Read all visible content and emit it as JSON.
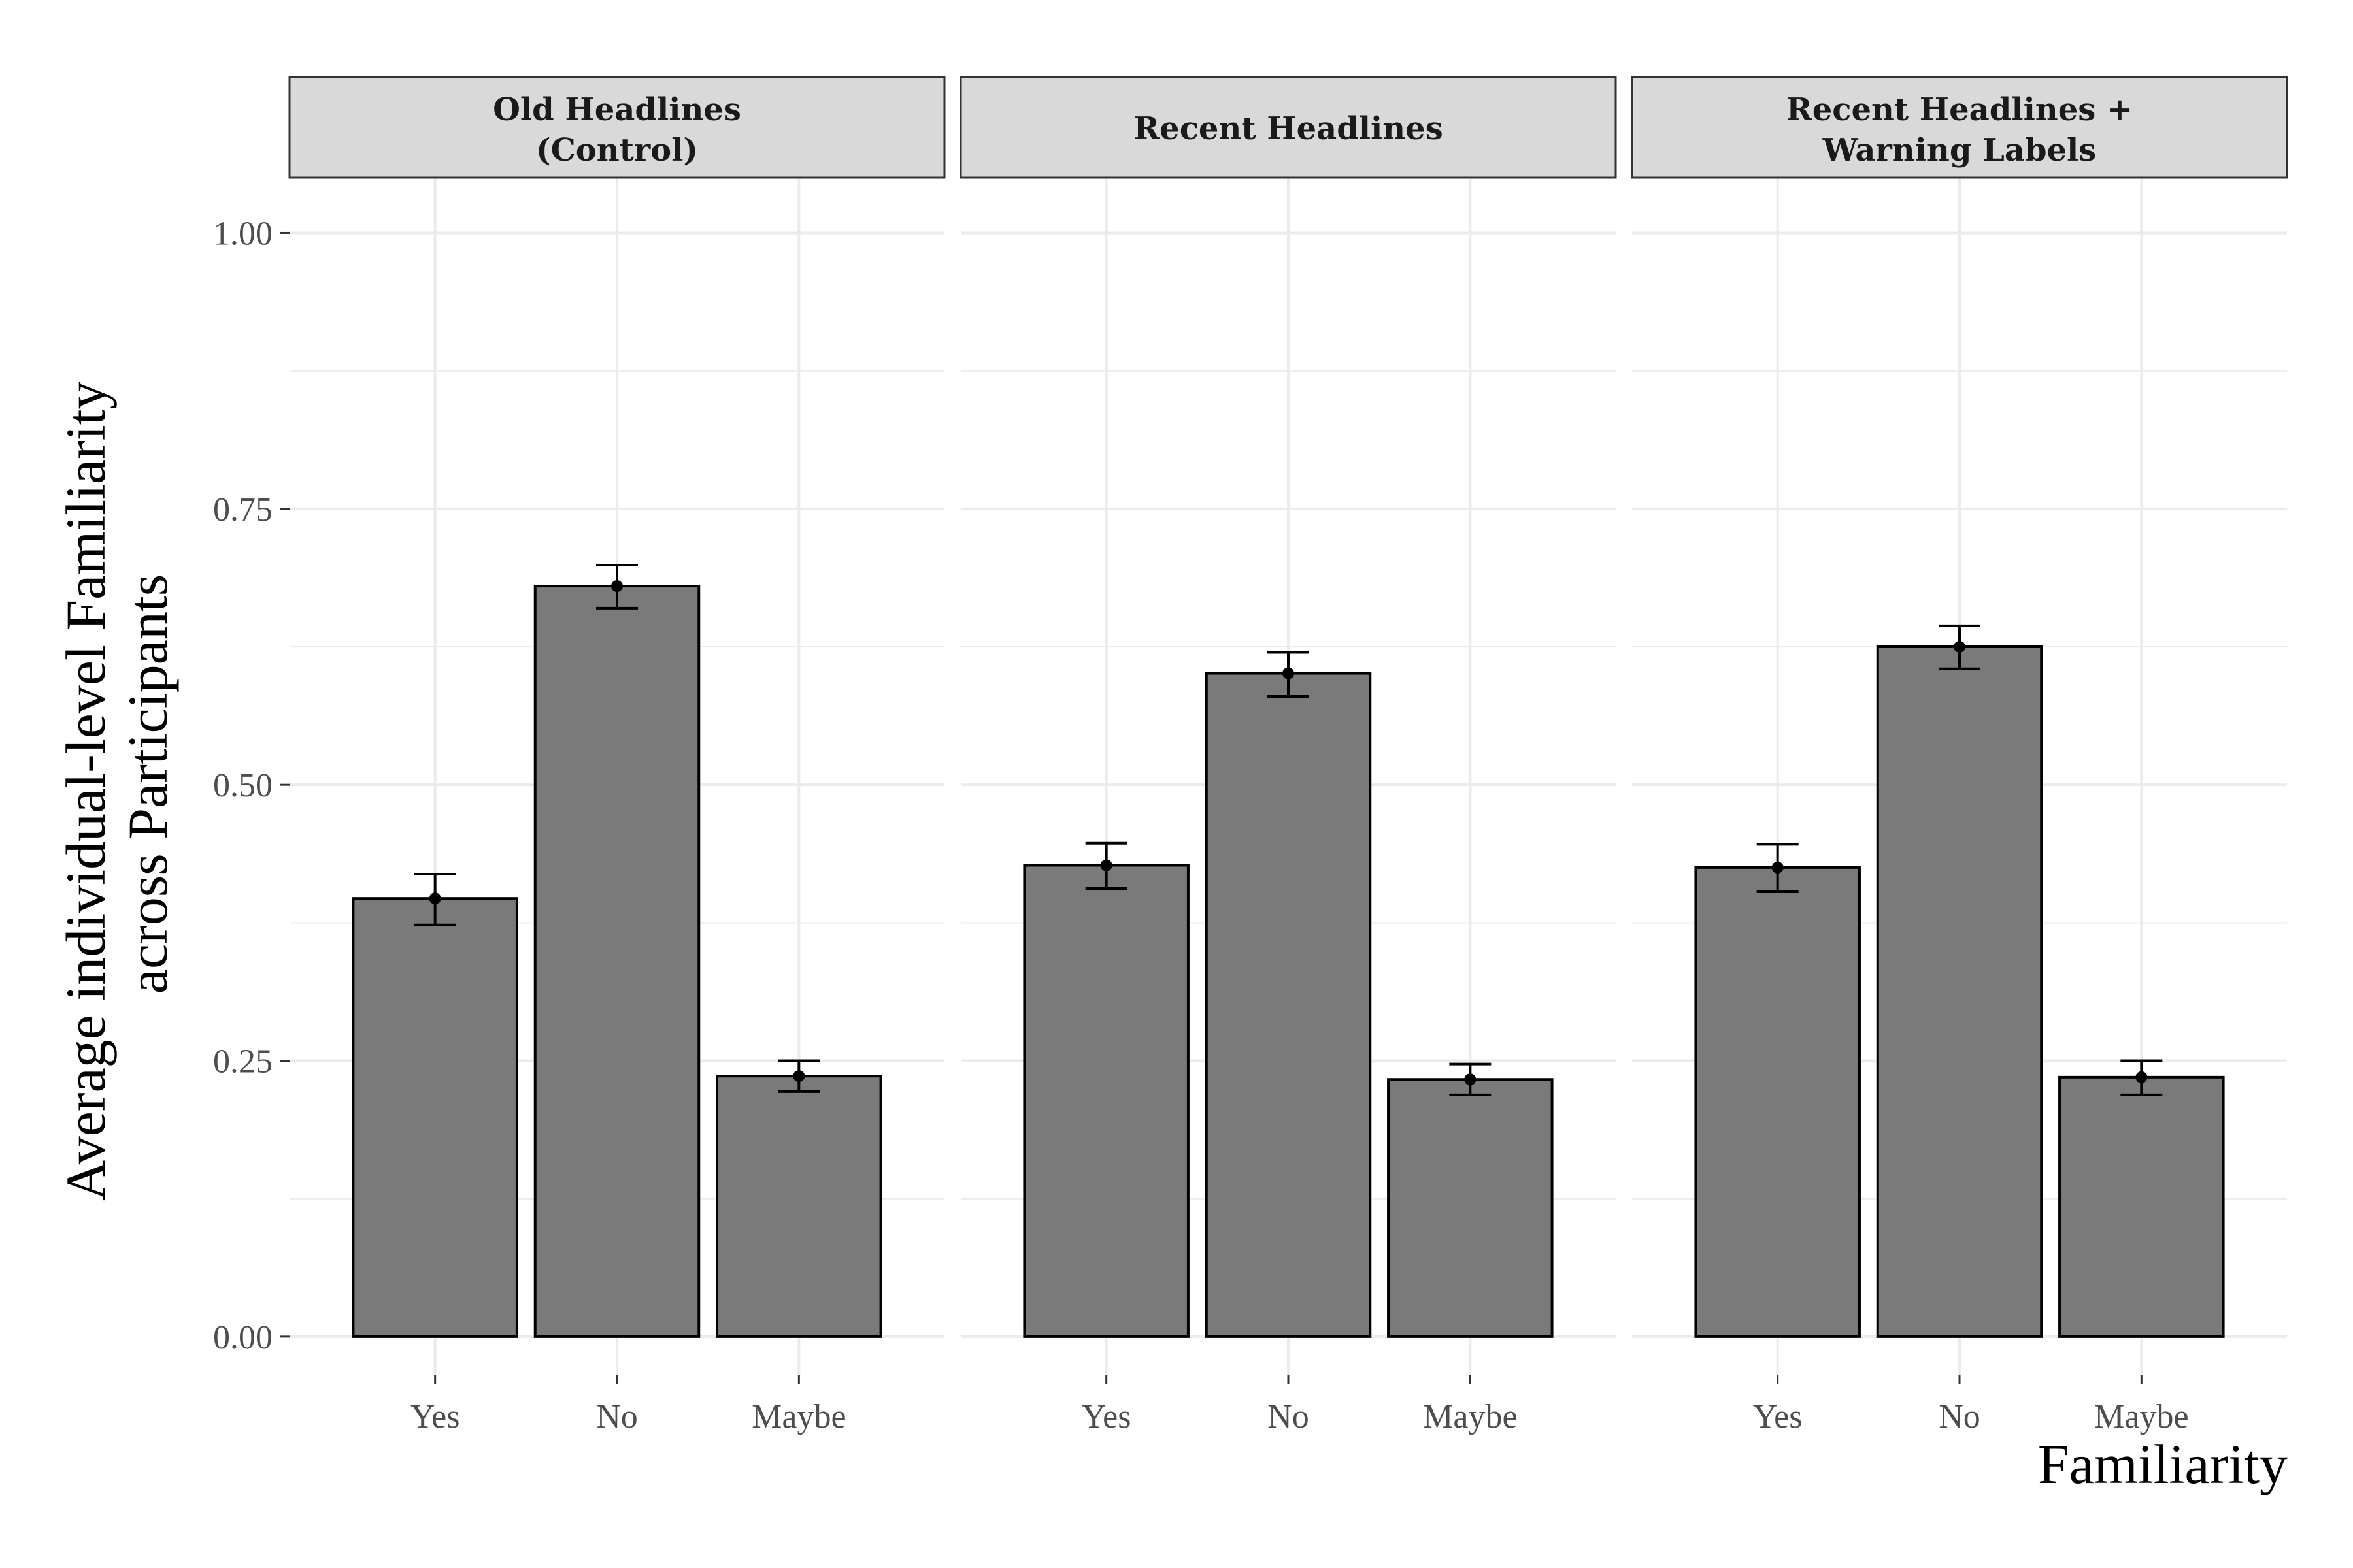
{
  "chart_data": {
    "type": "bar",
    "facet_variable": "condition",
    "panels": [
      {
        "title_lines": [
          "Old Headlines",
          "(Control)"
        ],
        "values": [
          0.397,
          0.68,
          0.236
        ],
        "error_low": [
          0.373,
          0.66,
          0.222
        ],
        "error_high": [
          0.419,
          0.699,
          0.25
        ]
      },
      {
        "title_lines": [
          "Recent Headlines"
        ],
        "values": [
          0.427,
          0.601,
          0.233
        ],
        "error_low": [
          0.406,
          0.58,
          0.219
        ],
        "error_high": [
          0.447,
          0.62,
          0.247
        ]
      },
      {
        "title_lines": [
          "Recent Headlines +",
          "Warning Labels"
        ],
        "values": [
          0.425,
          0.625,
          0.235
        ],
        "error_low": [
          0.403,
          0.605,
          0.219
        ],
        "error_high": [
          0.446,
          0.644,
          0.25
        ]
      }
    ],
    "categories": [
      "Yes",
      "No",
      "Maybe"
    ],
    "xlabel": "Familiarity",
    "ylabel_lines": [
      "Average individual-level Familiarity",
      "across Participants"
    ],
    "ylim": [
      -0.035,
      1.05
    ],
    "yticks": [
      0,
      0.25,
      0.5,
      0.75,
      1.0
    ],
    "ytick_labels": [
      "0.00",
      "0.25",
      "0.50",
      "0.75",
      "1.00"
    ],
    "grid": true,
    "colors": {
      "bar_fill": "#7a7a7a",
      "bar_outline": "#000000",
      "strip_fill": "#d9d9d9",
      "grid": "#ebebeb",
      "text": "#4d4d4d"
    }
  }
}
